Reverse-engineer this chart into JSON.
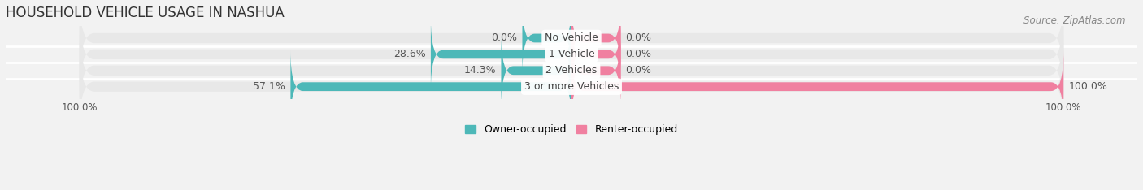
{
  "title": "HOUSEHOLD VEHICLE USAGE IN NASHUA",
  "source": "Source: ZipAtlas.com",
  "categories": [
    "No Vehicle",
    "1 Vehicle",
    "2 Vehicles",
    "3 or more Vehicles"
  ],
  "owner_values": [
    0.0,
    28.6,
    14.3,
    57.1
  ],
  "renter_values": [
    0.0,
    0.0,
    0.0,
    100.0
  ],
  "owner_color": "#4db8b8",
  "renter_color": "#f080a0",
  "bg_color": "#f2f2f2",
  "bar_bg_color": "#e2e2e2",
  "row_bg_color": "#e8e8e8",
  "max_value": 100.0,
  "title_fontsize": 12,
  "label_fontsize": 9,
  "tick_fontsize": 8.5,
  "source_fontsize": 8.5,
  "legend_fontsize": 9,
  "small_bar_pct": 10.0
}
